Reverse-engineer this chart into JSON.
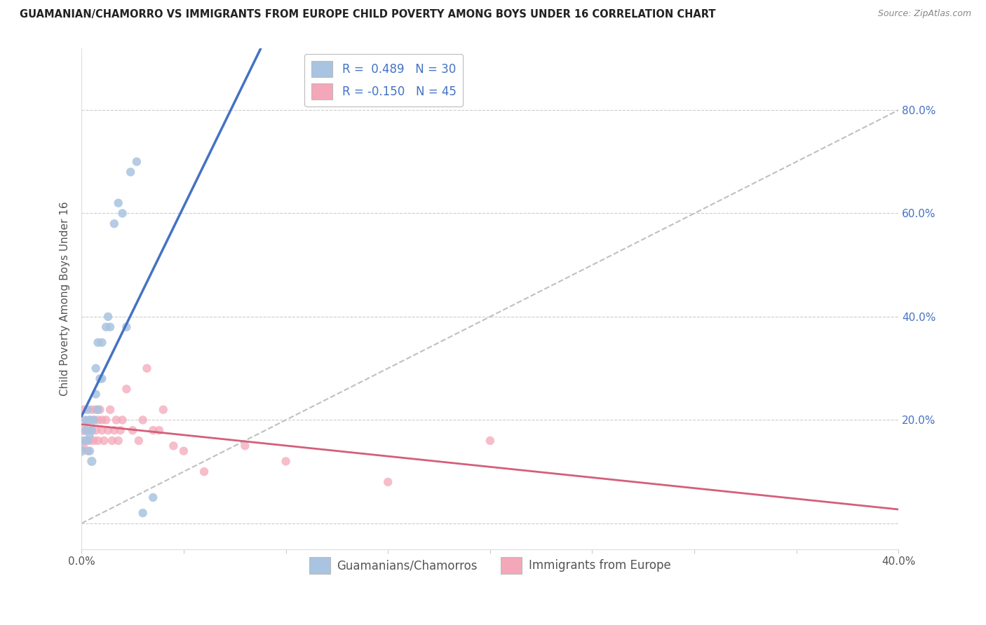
{
  "title": "GUAMANIAN/CHAMORRO VS IMMIGRANTS FROM EUROPE CHILD POVERTY AMONG BOYS UNDER 16 CORRELATION CHART",
  "source": "Source: ZipAtlas.com",
  "ylabel": "Child Poverty Among Boys Under 16",
  "r_guam": 0.489,
  "n_guam": 30,
  "r_europe": -0.15,
  "n_europe": 45,
  "xlim": [
    0.0,
    0.4
  ],
  "ylim": [
    -0.05,
    0.92
  ],
  "yticks": [
    0.0,
    0.2,
    0.4,
    0.6,
    0.8
  ],
  "color_guam": "#a8c4e0",
  "color_europe": "#f4a7b9",
  "line_color_guam": "#4472c4",
  "line_color_europe": "#d45f7a",
  "legend_label_guam": "Guamanians/Chamorros",
  "legend_label_europe": "Immigrants from Europe",
  "guam_x": [
    0.0,
    0.001,
    0.002,
    0.002,
    0.003,
    0.003,
    0.004,
    0.004,
    0.004,
    0.005,
    0.005,
    0.006,
    0.007,
    0.007,
    0.008,
    0.008,
    0.009,
    0.01,
    0.01,
    0.012,
    0.013,
    0.014,
    0.016,
    0.018,
    0.02,
    0.022,
    0.024,
    0.027,
    0.03,
    0.035
  ],
  "guam_y": [
    0.14,
    0.16,
    0.18,
    0.2,
    0.16,
    0.22,
    0.14,
    0.17,
    0.2,
    0.12,
    0.18,
    0.2,
    0.25,
    0.3,
    0.22,
    0.35,
    0.28,
    0.28,
    0.35,
    0.38,
    0.4,
    0.38,
    0.58,
    0.62,
    0.6,
    0.38,
    0.68,
    0.7,
    0.02,
    0.05
  ],
  "guam_sizes": [
    100,
    80,
    80,
    70,
    70,
    80,
    80,
    70,
    80,
    90,
    80,
    80,
    80,
    80,
    80,
    80,
    80,
    80,
    80,
    80,
    80,
    80,
    80,
    80,
    80,
    80,
    80,
    80,
    80,
    80
  ],
  "europe_x": [
    0.0,
    0.001,
    0.001,
    0.002,
    0.002,
    0.003,
    0.003,
    0.004,
    0.004,
    0.005,
    0.005,
    0.006,
    0.006,
    0.007,
    0.007,
    0.008,
    0.008,
    0.009,
    0.01,
    0.01,
    0.011,
    0.012,
    0.013,
    0.014,
    0.015,
    0.016,
    0.017,
    0.018,
    0.019,
    0.02,
    0.022,
    0.025,
    0.028,
    0.03,
    0.032,
    0.035,
    0.038,
    0.04,
    0.045,
    0.05,
    0.06,
    0.08,
    0.1,
    0.15,
    0.2
  ],
  "europe_y": [
    0.15,
    0.18,
    0.22,
    0.16,
    0.2,
    0.14,
    0.18,
    0.16,
    0.2,
    0.18,
    0.22,
    0.16,
    0.2,
    0.18,
    0.22,
    0.16,
    0.2,
    0.22,
    0.18,
    0.2,
    0.16,
    0.2,
    0.18,
    0.22,
    0.16,
    0.18,
    0.2,
    0.16,
    0.18,
    0.2,
    0.26,
    0.18,
    0.16,
    0.2,
    0.3,
    0.18,
    0.18,
    0.22,
    0.15,
    0.14,
    0.1,
    0.15,
    0.12,
    0.08,
    0.16
  ],
  "europe_sizes": [
    150,
    100,
    80,
    80,
    80,
    80,
    80,
    80,
    80,
    80,
    80,
    80,
    80,
    80,
    80,
    80,
    80,
    80,
    80,
    80,
    80,
    80,
    80,
    80,
    80,
    80,
    80,
    80,
    80,
    80,
    80,
    80,
    80,
    80,
    80,
    80,
    80,
    80,
    80,
    80,
    80,
    80,
    80,
    80,
    80
  ]
}
